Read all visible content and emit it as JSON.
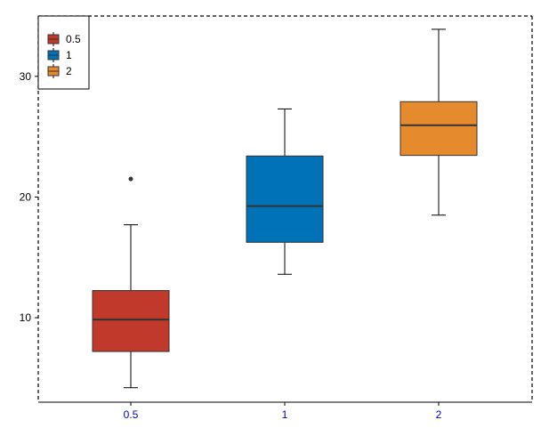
{
  "chart_data": {
    "type": "box",
    "title": "",
    "xlabel": "",
    "ylabel": "",
    "categories": [
      "0.5",
      "1",
      "2"
    ],
    "ylim": [
      3,
      35
    ],
    "yticks": [
      10,
      20,
      30
    ],
    "grid": false,
    "legend": {
      "placement": "top-left",
      "entries": [
        "0.5",
        "1",
        "2"
      ]
    },
    "series": [
      {
        "category": "0.5",
        "color": "#c0392b",
        "whisker_low": 4.2,
        "q1": 7.2,
        "median": 9.85,
        "q3": 12.25,
        "whisker_high": 17.7,
        "outliers": [
          21.5
        ]
      },
      {
        "category": "1",
        "color": "#0072b8",
        "whisker_low": 13.6,
        "q1": 16.25,
        "median": 19.25,
        "q3": 23.4,
        "whisker_high": 27.3,
        "outliers": []
      },
      {
        "category": "2",
        "color": "#e68a2e",
        "whisker_low": 18.5,
        "q1": 23.45,
        "median": 25.95,
        "q3": 27.9,
        "whisker_high": 33.9,
        "outliers": []
      }
    ],
    "colors": {
      "x_tick_label": "#0000cc",
      "y_tick_label": "#000000",
      "axis": "#000000"
    }
  }
}
